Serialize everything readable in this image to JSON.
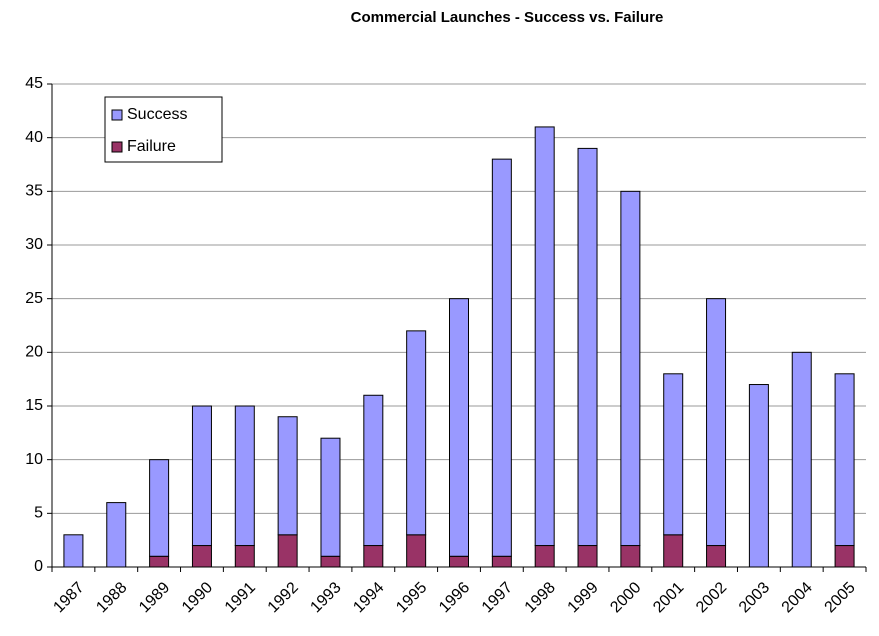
{
  "chart_data": {
    "type": "bar",
    "stacked": true,
    "title": "Commercial Launches - Success vs. Failure",
    "categories": [
      "1987",
      "1988",
      "1989",
      "1990",
      "1991",
      "1992",
      "1993",
      "1994",
      "1995",
      "1996",
      "1997",
      "1998",
      "1999",
      "2000",
      "2001",
      "2002",
      "2003",
      "2004",
      "2005"
    ],
    "series": [
      {
        "name": "Success",
        "color": "#9999ff",
        "values": [
          3,
          6,
          9,
          13,
          13,
          11,
          11,
          14,
          19,
          24,
          37,
          39,
          37,
          33,
          15,
          23,
          17,
          20,
          16
        ]
      },
      {
        "name": "Failure",
        "color": "#993366",
        "values": [
          0,
          0,
          1,
          2,
          2,
          3,
          1,
          2,
          3,
          1,
          1,
          2,
          2,
          2,
          3,
          2,
          0,
          0,
          2
        ]
      }
    ],
    "ylim": [
      0,
      45
    ],
    "yticks": [
      0,
      5,
      10,
      15,
      20,
      25,
      30,
      35,
      40,
      45
    ],
    "grid": true,
    "legend": "upper left"
  }
}
